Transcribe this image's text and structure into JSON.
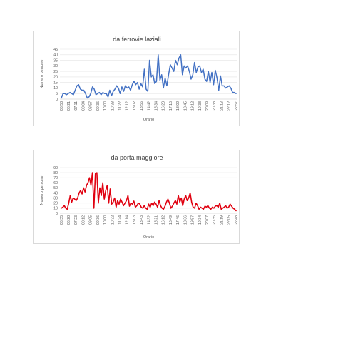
{
  "chart_data": [
    {
      "type": "line",
      "title": "da ferrovie laziali",
      "xlabel": "Orario",
      "ylabel": "Numero persone",
      "ylim": [
        0,
        45
      ],
      "yticks": [
        0,
        5,
        10,
        15,
        20,
        25,
        30,
        35,
        40,
        45
      ],
      "grid": true,
      "color": "#4472c4",
      "x_tick_labels": [
        "05.58",
        "06.21",
        "07.11",
        "08.04",
        "08.57",
        "09.35",
        "10.00",
        "10.38",
        "11.22",
        "12.12",
        "13.02",
        "13.56",
        "14.42",
        "15.34",
        "16.23",
        "17.15",
        "18.02",
        "18.45",
        "19.12",
        "19.38",
        "20.09",
        "20.38",
        "21.13",
        "22.12",
        "22.57"
      ],
      "values": [
        1,
        5,
        5,
        4,
        5,
        6,
        5,
        4,
        8,
        12,
        13,
        9,
        8,
        8,
        5,
        1,
        2,
        5,
        11,
        9,
        4,
        5,
        6,
        4,
        6,
        5,
        5,
        2,
        8,
        3,
        7,
        9,
        12,
        10,
        5,
        11,
        7,
        12,
        10,
        11,
        8,
        13,
        16,
        13,
        15,
        9,
        14,
        11,
        27,
        9,
        7,
        35,
        20,
        22,
        14,
        16,
        40,
        17,
        22,
        10,
        19,
        12,
        22,
        31,
        28,
        25,
        35,
        31,
        37,
        40,
        22,
        30,
        28,
        30,
        25,
        18,
        22,
        33,
        24,
        29,
        30,
        24,
        27,
        18,
        16,
        25,
        15,
        24,
        13,
        26,
        19,
        8,
        21,
        12,
        12,
        10,
        11,
        12,
        10,
        6,
        6,
        5
      ]
    },
    {
      "type": "line",
      "title": "da porta maggiore",
      "xlabel": "Orario",
      "ylabel": "Numero persone",
      "ylim": [
        0,
        90
      ],
      "yticks": [
        0,
        10,
        20,
        30,
        40,
        50,
        60,
        70,
        80,
        90
      ],
      "grid": true,
      "color": "#e0000f",
      "x_tick_labels": [
        "05.35",
        "06.28",
        "07.23",
        "08.12",
        "09.05",
        "09.36",
        "10.00",
        "10.32",
        "11.24",
        "12.14",
        "13.03",
        "13.43",
        "14.32",
        "15.21",
        "16.12",
        "16.49",
        "17.46",
        "18.36",
        "19.57",
        "19.34",
        "20.07",
        "20.35",
        "21.19",
        "22.05",
        "22.48"
      ],
      "values": [
        10,
        12,
        15,
        10,
        8,
        20,
        35,
        22,
        30,
        28,
        25,
        30,
        40,
        45,
        38,
        50,
        42,
        55,
        60,
        70,
        55,
        80,
        10,
        78,
        80,
        20,
        50,
        35,
        60,
        28,
        45,
        55,
        20,
        48,
        18,
        22,
        30,
        12,
        25,
        18,
        28,
        22,
        15,
        20,
        25,
        35,
        14,
        20,
        18,
        24,
        12,
        15,
        20,
        18,
        12,
        10,
        15,
        10,
        8,
        18,
        12,
        20,
        15,
        22,
        18,
        12,
        25,
        15,
        10,
        8,
        14,
        22,
        28,
        20,
        10,
        14,
        20,
        25,
        18,
        35,
        22,
        30,
        15,
        28,
        35,
        25,
        30,
        40,
        22,
        12,
        10,
        20,
        15,
        8,
        12,
        10,
        8,
        14,
        12,
        15,
        10,
        8,
        12,
        10,
        14,
        15,
        12,
        20,
        8,
        10,
        12,
        15,
        10,
        12,
        18,
        14,
        10,
        8,
        5
      ]
    }
  ]
}
